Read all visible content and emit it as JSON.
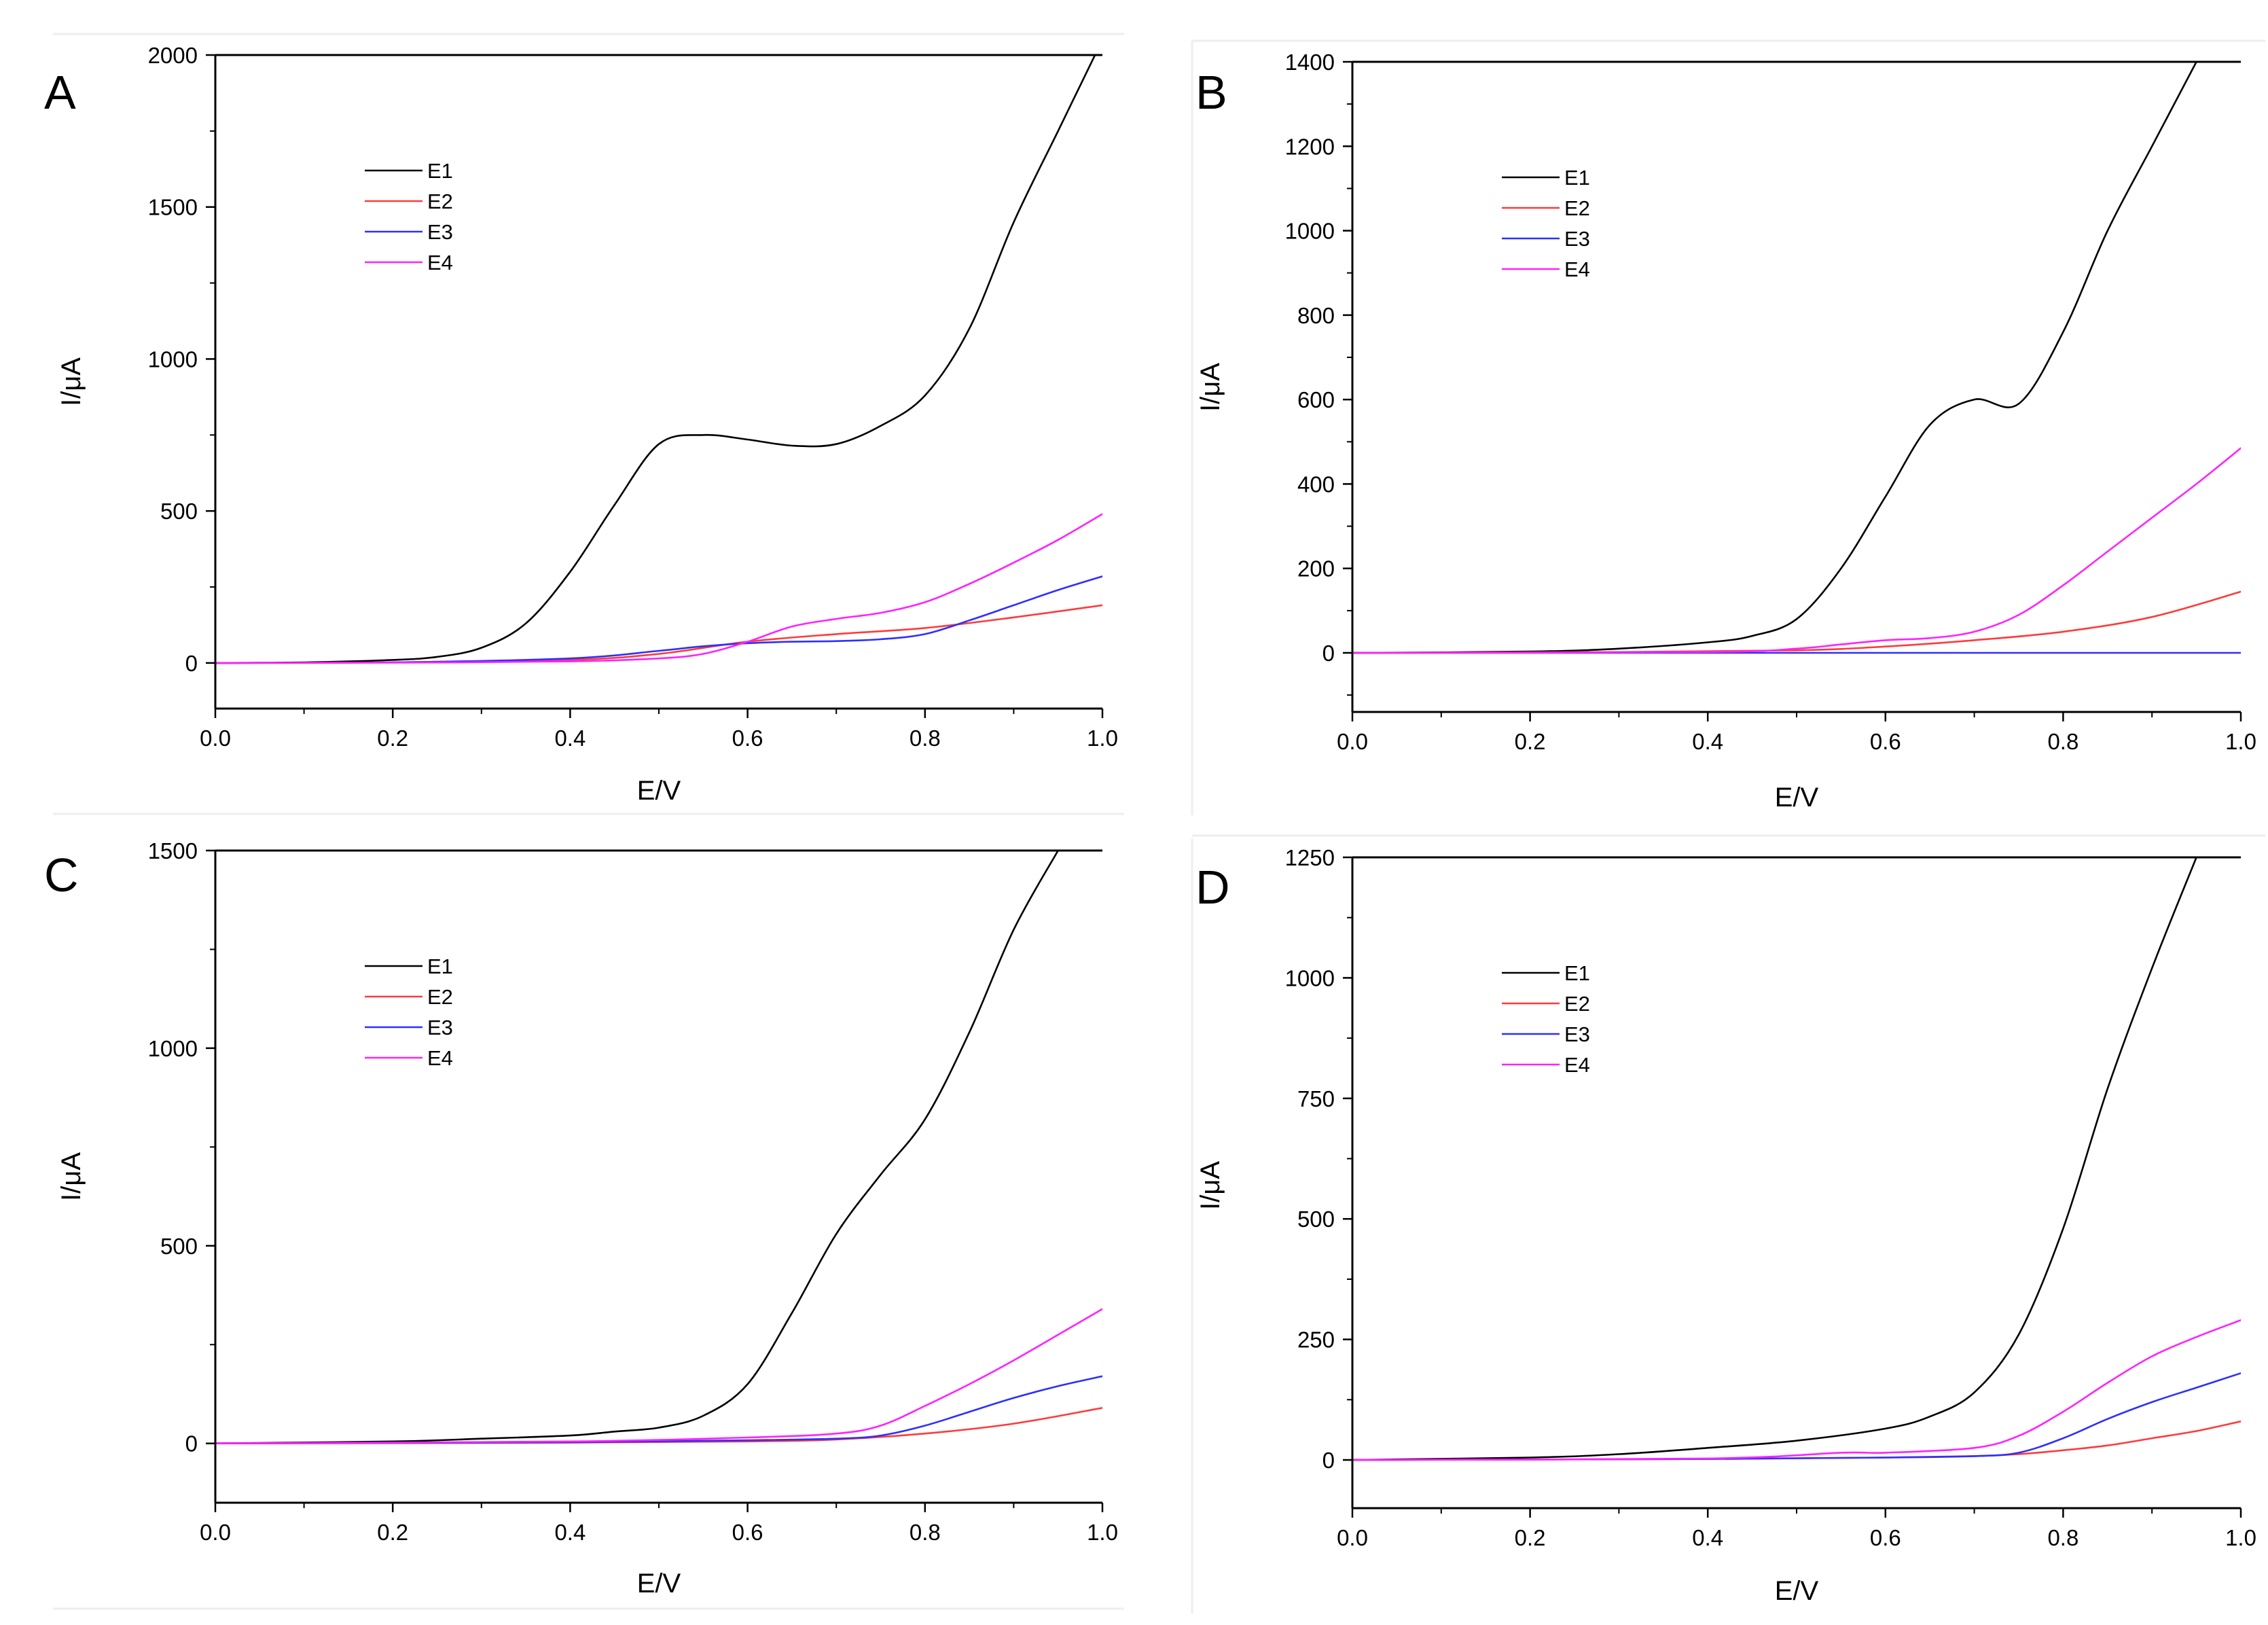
{
  "figure": {
    "colors": {
      "E1": "#000000",
      "E2": "#ff3b3b",
      "E3": "#2f2fff",
      "E4": "#ff22ff"
    }
  },
  "chart_data": [
    {
      "panel": "A",
      "type": "line",
      "xlabel": "E/V",
      "ylabel": "I/μA",
      "xlim": [
        0.0,
        1.0
      ],
      "ylim": [
        -150,
        2000
      ],
      "xticks": [
        0.0,
        0.2,
        0.4,
        0.6,
        0.8,
        1.0
      ],
      "xtick_labels": [
        "0.0",
        "0.2",
        "0.4",
        "0.6",
        "0.8",
        "1.0"
      ],
      "yticks": [
        0,
        500,
        1000,
        1500,
        2000
      ],
      "ytick_labels": [
        "0",
        "500",
        "1000",
        "1500",
        "2000"
      ],
      "legend_position": "upper-left",
      "series": [
        {
          "name": "E1",
          "x": [
            0.0,
            0.1,
            0.2,
            0.25,
            0.3,
            0.35,
            0.4,
            0.45,
            0.5,
            0.55,
            0.6,
            0.65,
            0.7,
            0.75,
            0.8,
            0.85,
            0.9,
            0.95,
            1.0
          ],
          "y": [
            0,
            2,
            10,
            20,
            50,
            130,
            300,
            520,
            720,
            750,
            735,
            715,
            720,
            780,
            880,
            1100,
            1450,
            1750,
            2050
          ]
        },
        {
          "name": "E2",
          "x": [
            0.0,
            0.2,
            0.4,
            0.5,
            0.6,
            0.7,
            0.8,
            0.9,
            1.0
          ],
          "y": [
            0,
            2,
            10,
            30,
            70,
            95,
            115,
            150,
            190
          ]
        },
        {
          "name": "E3",
          "x": [
            0.0,
            0.2,
            0.4,
            0.5,
            0.55,
            0.6,
            0.65,
            0.7,
            0.75,
            0.8,
            0.85,
            0.9,
            0.95,
            1.0
          ],
          "y": [
            0,
            2,
            15,
            40,
            55,
            65,
            70,
            72,
            78,
            95,
            140,
            190,
            240,
            285
          ]
        },
        {
          "name": "E4",
          "x": [
            0.0,
            0.2,
            0.4,
            0.5,
            0.55,
            0.6,
            0.65,
            0.7,
            0.75,
            0.8,
            0.85,
            0.9,
            0.95,
            1.0
          ],
          "y": [
            0,
            1,
            5,
            15,
            30,
            70,
            120,
            145,
            165,
            200,
            260,
            330,
            405,
            490
          ]
        }
      ]
    },
    {
      "panel": "B",
      "type": "line",
      "xlabel": "E/V",
      "ylabel": "I/μA",
      "xlim": [
        0.0,
        1.0
      ],
      "ylim": [
        -140,
        1400
      ],
      "xticks": [
        0.0,
        0.2,
        0.4,
        0.6,
        0.8,
        1.0
      ],
      "xtick_labels": [
        "0.0",
        "0.2",
        "0.4",
        "0.6",
        "0.8",
        "1.0"
      ],
      "yticks": [
        0,
        200,
        400,
        600,
        800,
        1000,
        1200,
        1400
      ],
      "ytick_labels": [
        "0",
        "200",
        "400",
        "600",
        "800",
        "1000",
        "1200",
        "1400"
      ],
      "legend_position": "upper-left",
      "series": [
        {
          "name": "E1",
          "x": [
            0.0,
            0.2,
            0.3,
            0.4,
            0.45,
            0.5,
            0.55,
            0.6,
            0.65,
            0.7,
            0.75,
            0.8,
            0.85,
            0.9,
            0.95
          ],
          "y": [
            0,
            3,
            10,
            25,
            40,
            80,
            200,
            370,
            540,
            600,
            590,
            760,
            1000,
            1200,
            1400
          ]
        },
        {
          "name": "E2",
          "x": [
            0.0,
            0.3,
            0.5,
            0.6,
            0.7,
            0.8,
            0.9,
            1.0
          ],
          "y": [
            0,
            2,
            6,
            15,
            30,
            50,
            85,
            145
          ]
        },
        {
          "name": "E3",
          "x": [
            0.0,
            1.0
          ],
          "y": [
            0,
            0
          ]
        },
        {
          "name": "E4",
          "x": [
            0.0,
            0.4,
            0.5,
            0.55,
            0.6,
            0.65,
            0.7,
            0.75,
            0.8,
            0.85,
            0.9,
            0.95,
            1.0
          ],
          "y": [
            0,
            2,
            10,
            20,
            30,
            35,
            50,
            90,
            160,
            240,
            320,
            400,
            485
          ]
        }
      ]
    },
    {
      "panel": "C",
      "type": "line",
      "xlabel": "E/V",
      "ylabel": "I/μA",
      "xlim": [
        0.0,
        1.0
      ],
      "ylim": [
        -150,
        1500
      ],
      "xticks": [
        0.0,
        0.2,
        0.4,
        0.6,
        0.8,
        1.0
      ],
      "xtick_labels": [
        "0.0",
        "0.2",
        "0.4",
        "0.6",
        "0.8",
        "1.0"
      ],
      "yticks": [
        0,
        500,
        1000,
        1500
      ],
      "ytick_labels": [
        "0",
        "500",
        "1000",
        "1500"
      ],
      "legend_position": "upper-left",
      "series": [
        {
          "name": "E1",
          "x": [
            0.0,
            0.2,
            0.3,
            0.4,
            0.45,
            0.5,
            0.55,
            0.6,
            0.65,
            0.7,
            0.75,
            0.8,
            0.85,
            0.9,
            0.95
          ],
          "y": [
            0,
            5,
            12,
            20,
            30,
            40,
            70,
            150,
            330,
            530,
            680,
            820,
            1040,
            1300,
            1500
          ]
        },
        {
          "name": "E2",
          "x": [
            0.0,
            0.4,
            0.6,
            0.7,
            0.8,
            0.9,
            1.0
          ],
          "y": [
            0,
            2,
            5,
            10,
            25,
            50,
            90
          ]
        },
        {
          "name": "E3",
          "x": [
            0.0,
            0.4,
            0.6,
            0.7,
            0.75,
            0.8,
            0.85,
            0.9,
            0.95,
            1.0
          ],
          "y": [
            0,
            3,
            8,
            12,
            20,
            45,
            80,
            115,
            145,
            170
          ]
        },
        {
          "name": "E4",
          "x": [
            0.0,
            0.4,
            0.6,
            0.7,
            0.75,
            0.8,
            0.85,
            0.9,
            0.95,
            1.0
          ],
          "y": [
            0,
            5,
            15,
            25,
            45,
            95,
            150,
            210,
            275,
            340
          ]
        }
      ]
    },
    {
      "panel": "D",
      "type": "line",
      "xlabel": "E/V",
      "ylabel": "I/μA",
      "xlim": [
        0.0,
        1.0
      ],
      "ylim": [
        -100,
        1250
      ],
      "xticks": [
        0.0,
        0.2,
        0.4,
        0.6,
        0.8,
        1.0
      ],
      "xtick_labels": [
        "0.0",
        "0.2",
        "0.4",
        "0.6",
        "0.8",
        "1.0"
      ],
      "yticks": [
        0,
        250,
        500,
        750,
        1000,
        1250
      ],
      "ytick_labels": [
        "0",
        "250",
        "500",
        "750",
        "1000",
        "1250"
      ],
      "legend_position": "upper-left",
      "series": [
        {
          "name": "E1",
          "x": [
            0.0,
            0.2,
            0.3,
            0.4,
            0.5,
            0.6,
            0.65,
            0.7,
            0.75,
            0.8,
            0.85,
            0.9,
            0.95
          ],
          "y": [
            0,
            5,
            12,
            25,
            40,
            65,
            90,
            140,
            260,
            480,
            770,
            1020,
            1250
          ]
        },
        {
          "name": "E2",
          "x": [
            0.0,
            0.4,
            0.6,
            0.7,
            0.75,
            0.8,
            0.85,
            0.9,
            0.95,
            1.0
          ],
          "y": [
            0,
            2,
            5,
            8,
            12,
            20,
            30,
            45,
            60,
            80
          ]
        },
        {
          "name": "E3",
          "x": [
            0.0,
            0.4,
            0.6,
            0.7,
            0.75,
            0.8,
            0.85,
            0.9,
            0.95,
            1.0
          ],
          "y": [
            0,
            2,
            5,
            8,
            15,
            45,
            85,
            120,
            150,
            180
          ]
        },
        {
          "name": "E4",
          "x": [
            0.0,
            0.4,
            0.55,
            0.6,
            0.7,
            0.75,
            0.8,
            0.85,
            0.9,
            0.95,
            1.0
          ],
          "y": [
            0,
            3,
            15,
            15,
            25,
            50,
            100,
            160,
            215,
            255,
            290
          ]
        }
      ]
    }
  ]
}
